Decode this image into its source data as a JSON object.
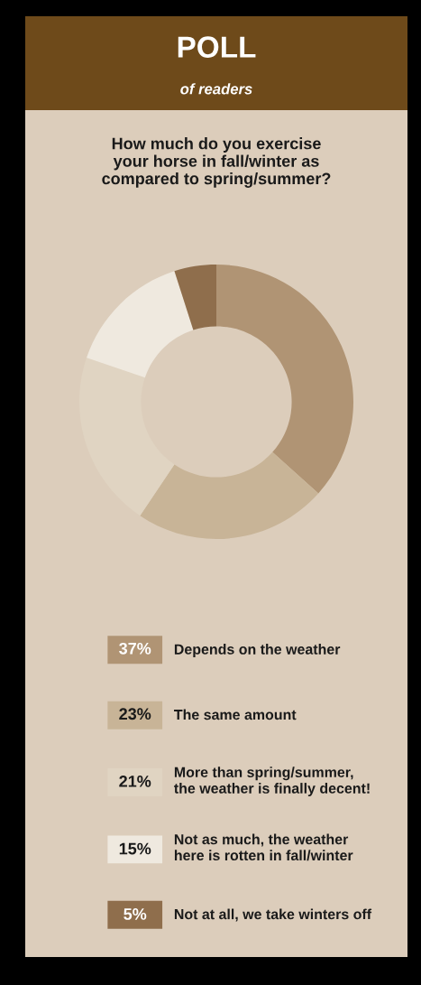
{
  "chart_data": {
    "type": "donut",
    "title": "POLL",
    "subtitle": "of readers",
    "annotations": [
      "How much do you exercise\nyour horse in fall/winter as\ncompared to spring/summer?"
    ],
    "categories": [
      "Depends on the weather",
      "The same amount",
      "More than spring/summer,\nthe weather is finally decent!",
      "Not as much, the weather\nhere is rotten in fall/winter",
      "Not at all, we take winters off"
    ],
    "values": [
      37,
      23,
      21,
      15,
      5
    ],
    "value_labels": [
      "37%",
      "23%",
      "21%",
      "15%",
      "5%"
    ],
    "colors": [
      "#b09474",
      "#c8b497",
      "#e0d4c2",
      "#efe9df",
      "#8f6e4c"
    ],
    "legend": "bottom"
  }
}
